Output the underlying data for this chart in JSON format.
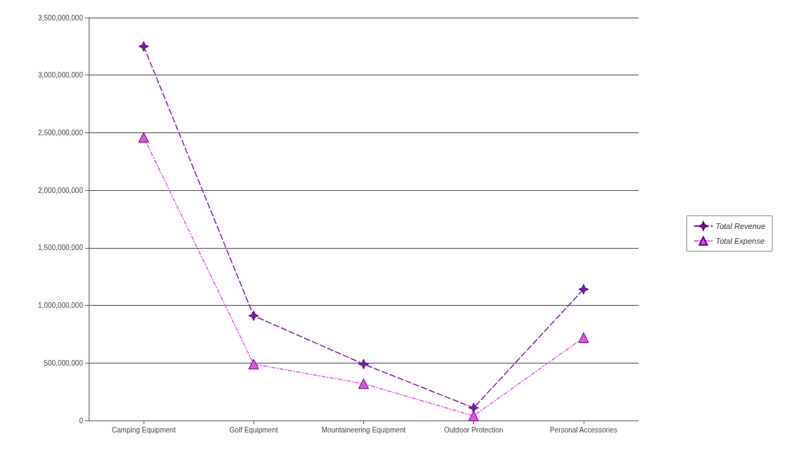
{
  "chart_data": {
    "type": "line",
    "categories": [
      "Camping Equipment",
      "Golf Equipment",
      "Mountaineering Equipment",
      "Outdoor Protection",
      "Personal Accessories"
    ],
    "series": [
      {
        "name": "Total Revenue",
        "color": "#7b1fa2",
        "marker": "star",
        "line_style": "dashed",
        "values": [
          3250000000,
          910000000,
          490000000,
          110000000,
          1140000000
        ]
      },
      {
        "name": "Total Expense",
        "color": "#e055e0",
        "marker": "triangle",
        "line_style": "dotted",
        "values": [
          2460000000,
          490000000,
          320000000,
          40000000,
          720000000
        ]
      }
    ],
    "ylim": [
      0,
      3500000000
    ],
    "yticks": [
      {
        "value": 0,
        "label": "0"
      },
      {
        "value": 500000000,
        "label": "500,000,000"
      },
      {
        "value": 1000000000,
        "label": "1,000,000,000"
      },
      {
        "value": 1500000000,
        "label": "1,500,000,000"
      },
      {
        "value": 2000000000,
        "label": "2,000,000,000"
      },
      {
        "value": 2500000000,
        "label": "2,500,000,000"
      },
      {
        "value": 3000000000,
        "label": "3,000,000,000"
      },
      {
        "value": 3500000000,
        "label": "3,500,000,000"
      }
    ],
    "grid": "y",
    "legend": "right"
  }
}
